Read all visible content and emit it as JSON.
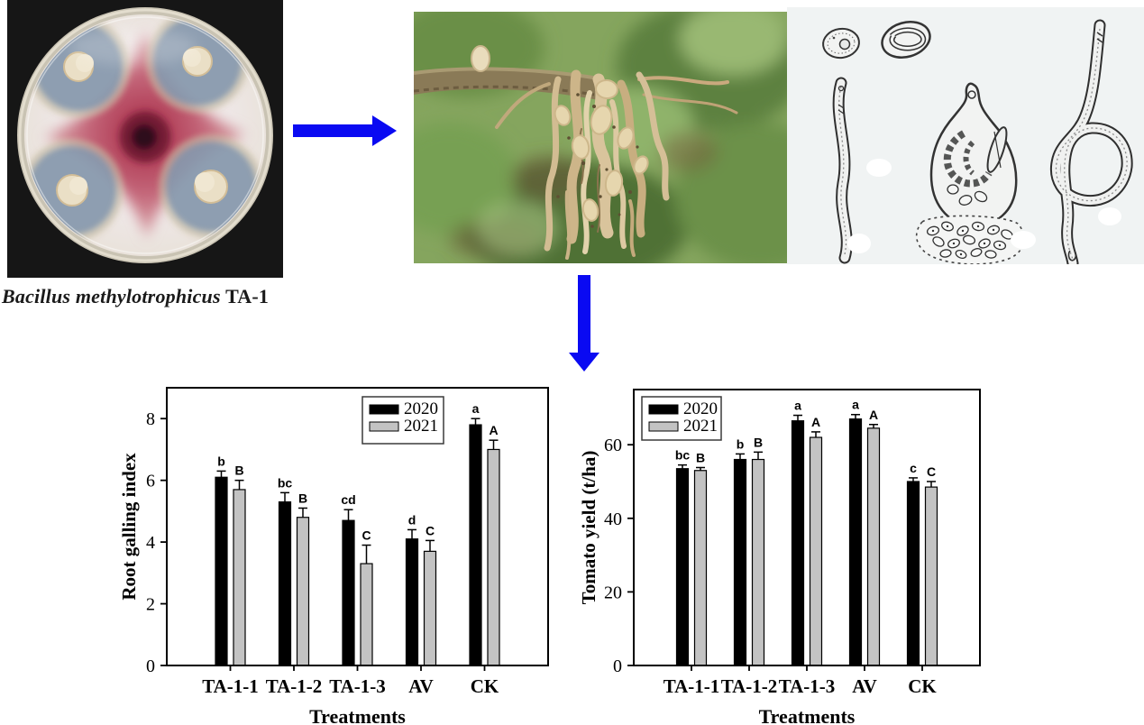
{
  "caption": {
    "species": "Bacillus methylotrophicus",
    "strain": " TA-1"
  },
  "icons": {
    "arrow_right": "flow-arrow-right",
    "arrow_down": "flow-arrow-down"
  },
  "colors": {
    "arrow_blue": "#0a0af2",
    "bar_2020": "#000000",
    "bar_2021": "#c3c3c3",
    "axis": "#000000",
    "drawing_panel_bg": "#edf0f0"
  },
  "chart_data": [
    {
      "type": "bar",
      "title": "",
      "xlabel": "Treatments",
      "ylabel": "Root galling index",
      "categories": [
        "TA-1-1",
        "TA-1-2",
        "TA-1-3",
        "AV",
        "CK"
      ],
      "series": [
        {
          "name": "2020",
          "color": "#000000",
          "values": [
            6.1,
            5.3,
            4.7,
            4.1,
            7.8
          ],
          "errors": [
            0.2,
            0.3,
            0.35,
            0.3,
            0.2
          ],
          "letters": [
            "b",
            "bc",
            "cd",
            "d",
            "a"
          ]
        },
        {
          "name": "2021",
          "color": "#c3c3c3",
          "values": [
            5.7,
            4.8,
            3.3,
            3.7,
            7.0
          ],
          "errors": [
            0.3,
            0.3,
            0.6,
            0.35,
            0.3
          ],
          "letters": [
            "B",
            "B",
            "C",
            "C",
            "A"
          ]
        }
      ],
      "ylim": [
        0,
        9
      ],
      "yticks": [
        0,
        2,
        4,
        6,
        8
      ],
      "grid": false,
      "legend_position": "upper-right-inside"
    },
    {
      "type": "bar",
      "title": "",
      "xlabel": "Treatments",
      "ylabel": "Tomato yield (t/ha)",
      "categories": [
        "TA-1-1",
        "TA-1-2",
        "TA-1-3",
        "AV",
        "CK"
      ],
      "series": [
        {
          "name": "2020",
          "color": "#000000",
          "values": [
            53.5,
            56,
            66.5,
            67,
            50
          ],
          "errors": [
            1,
            1.5,
            1.5,
            1.2,
            1
          ],
          "letters": [
            "bc",
            "b",
            "a",
            "a",
            "c"
          ]
        },
        {
          "name": "2021",
          "color": "#c3c3c3",
          "values": [
            53,
            56,
            62,
            64.5,
            48.5
          ],
          "errors": [
            0.8,
            2,
            1.5,
            1,
            1.5
          ],
          "letters": [
            "B",
            "B",
            "A",
            "A",
            "C"
          ]
        }
      ],
      "ylim": [
        0,
        75
      ],
      "yticks": [
        0,
        20,
        40,
        60
      ],
      "grid": false,
      "legend_position": "upper-left-inside"
    }
  ]
}
